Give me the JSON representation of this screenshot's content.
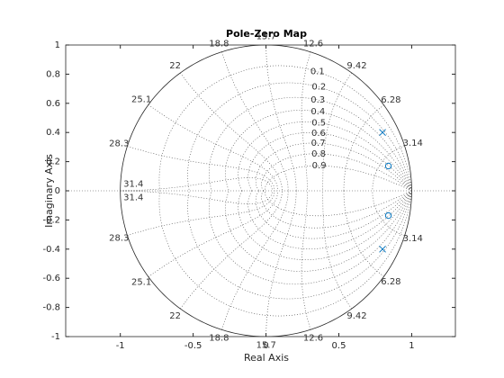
{
  "chart_data": {
    "type": "pole-zero",
    "title": "Pole-Zero Map",
    "x_label": "Real Axis",
    "y_label": "Imaginary Axis",
    "xlim": [
      -1.375,
      1.3
    ],
    "ylim": [
      -1,
      1
    ],
    "xticks": [
      -1,
      -0.5,
      0,
      0.5,
      1
    ],
    "yticks": [
      1,
      0.8,
      0.6,
      0.4,
      0.2,
      0,
      -0.2,
      -0.4,
      -0.6,
      -0.8,
      -1
    ],
    "grid": true,
    "color": "#0072BD",
    "poles": {
      "marker": "x",
      "x": [
        0.8,
        0.8
      ],
      "y": [
        0.4,
        -0.4
      ]
    },
    "zeros": {
      "marker": "o",
      "x": [
        0.84,
        0.84
      ],
      "y": [
        0.17,
        -0.17
      ]
    },
    "damping_labels": [
      0.1,
      0.2,
      0.3,
      0.4,
      0.5,
      0.6,
      0.7,
      0.8,
      0.9
    ],
    "frequency_labels": [
      3.14,
      6.28,
      9.42,
      12.6,
      15.7,
      18.8,
      22,
      25.1,
      28.3,
      31.4
    ]
  }
}
